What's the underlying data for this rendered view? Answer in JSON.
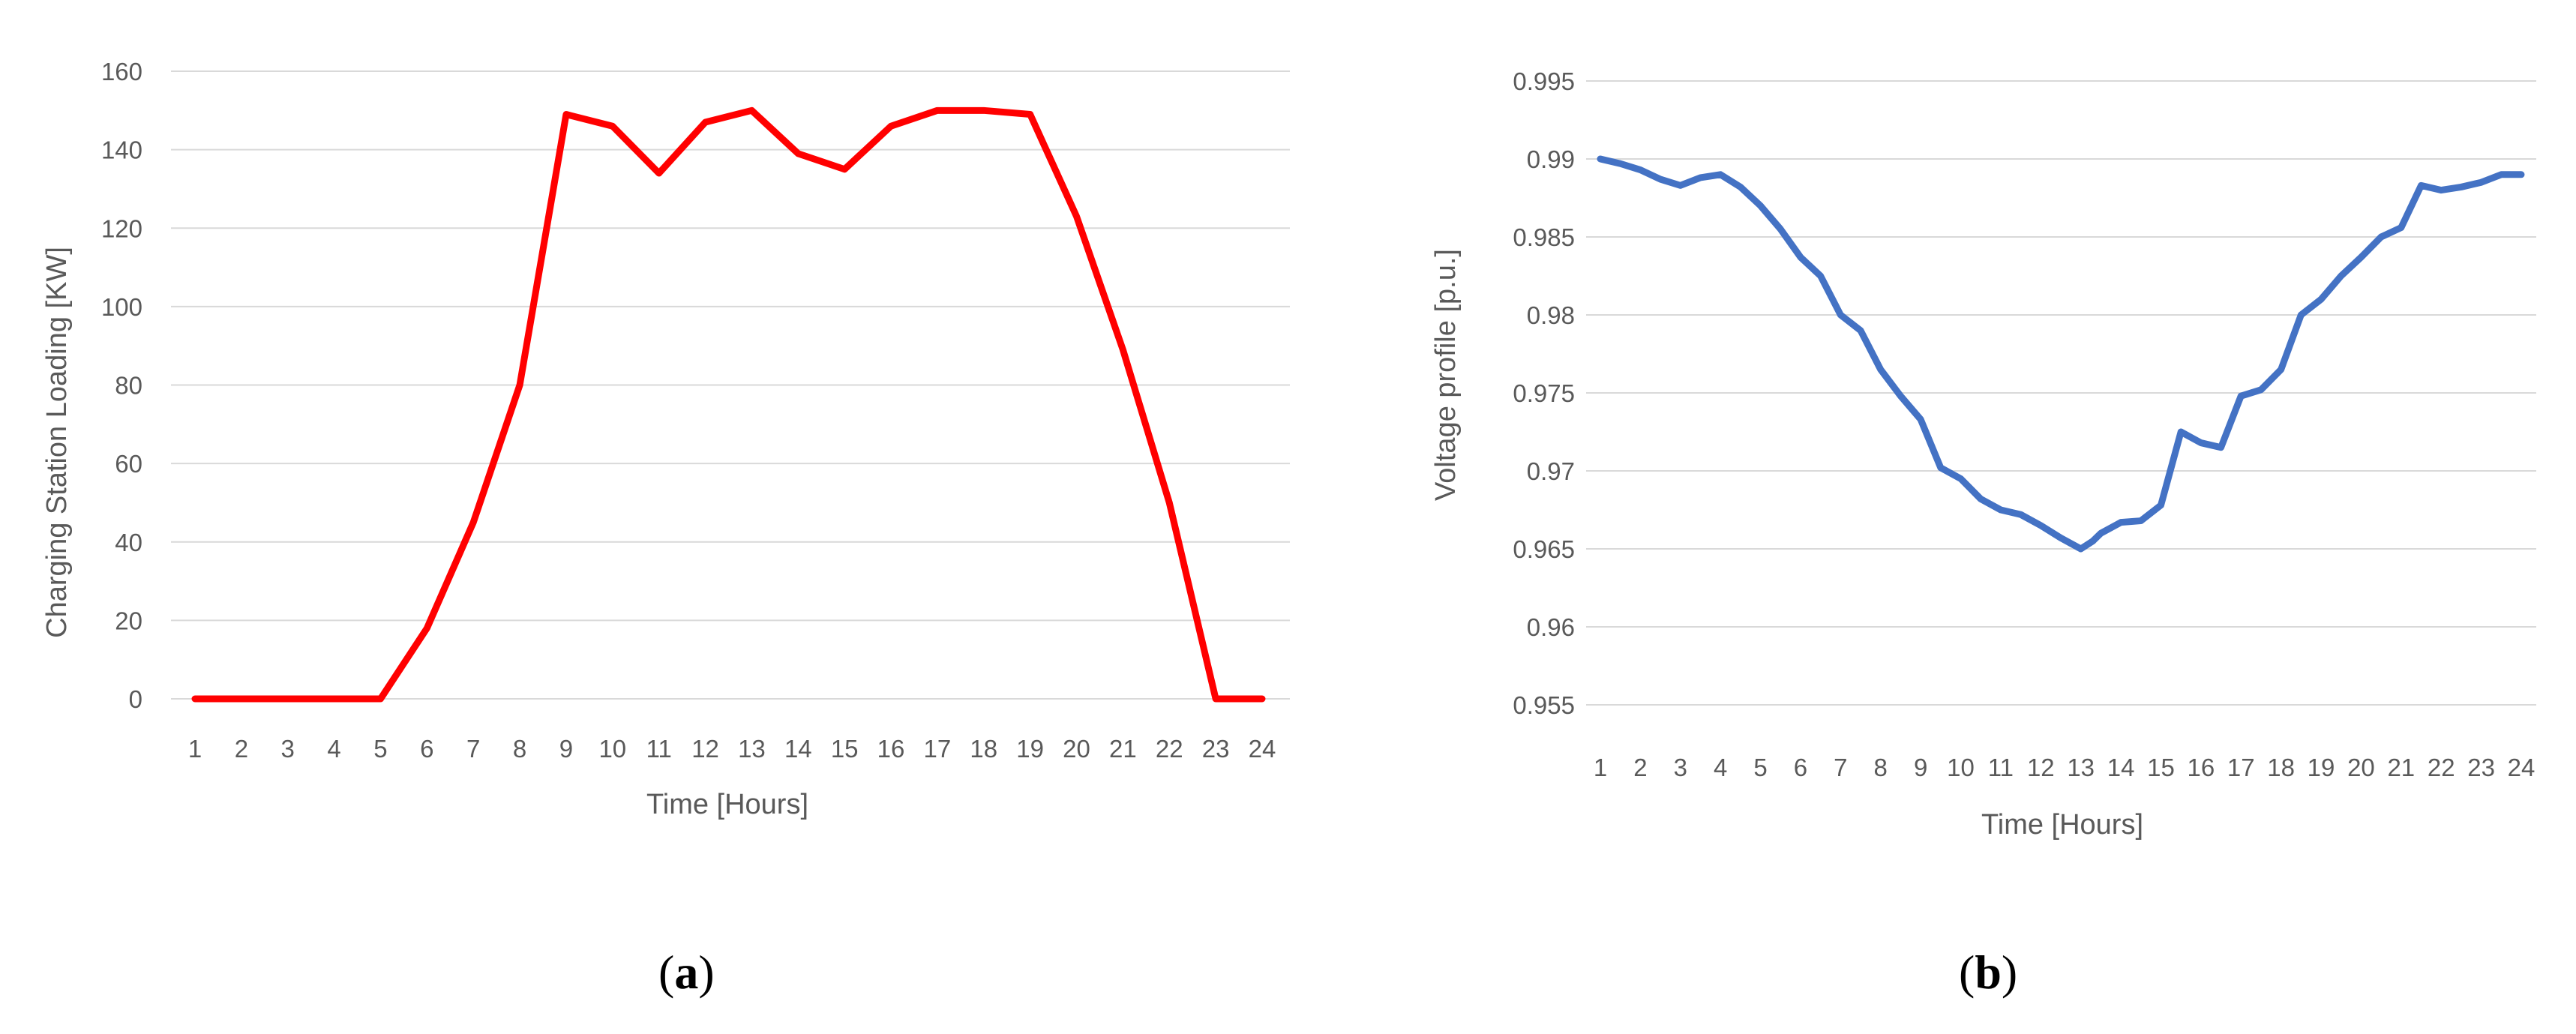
{
  "chart_data": [
    {
      "type": "line",
      "panel": "(a)",
      "panel_letter": "a",
      "xlabel": "Time [Hours]",
      "ylabel": "Charging Station Loading [KW]",
      "ylim": [
        0,
        160
      ],
      "yticks": [
        "0",
        "20",
        "40",
        "60",
        "80",
        "100",
        "120",
        "140",
        "160"
      ],
      "x": [
        1,
        2,
        3,
        4,
        5,
        6,
        7,
        8,
        9,
        10,
        11,
        12,
        13,
        14,
        15,
        16,
        17,
        18,
        19,
        20,
        21,
        22,
        23,
        24
      ],
      "xtick_labels": [
        "1",
        "2",
        "3",
        "4",
        "5",
        "6",
        "7",
        "8",
        "9",
        "10",
        "11",
        "12",
        "13",
        "14",
        "15",
        "16",
        "17",
        "18",
        "19",
        "20",
        "21",
        "22",
        "23",
        "24"
      ],
      "series": [
        {
          "color": "#ff0000",
          "values": [
            0,
            0,
            0,
            0,
            0,
            18,
            45,
            80,
            149,
            146,
            134,
            147,
            150,
            139,
            135,
            146,
            150,
            150,
            149,
            123,
            89,
            50,
            0,
            0
          ]
        }
      ],
      "grid": "horizontal",
      "legend": "none"
    },
    {
      "type": "line",
      "panel": "(b)",
      "panel_letter": "b",
      "xlabel": "Time [Hours]",
      "ylabel": "Voltage profile [p.u.]",
      "ylim": [
        0.955,
        0.995
      ],
      "yticks": [
        "0.955",
        "0.96",
        "0.965",
        "0.97",
        "0.975",
        "0.98",
        "0.985",
        "0.99",
        "0.995"
      ],
      "xtick_labels": [
        "1",
        "2",
        "3",
        "4",
        "5",
        "6",
        "7",
        "8",
        "9",
        "10",
        "11",
        "12",
        "13",
        "14",
        "15",
        "16",
        "17",
        "18",
        "19",
        "20",
        "21",
        "22",
        "23",
        "24"
      ],
      "series": [
        {
          "color": "#4472c4",
          "x": [
            1,
            1.5,
            2,
            2.5,
            3,
            3.5,
            4,
            4.5,
            5,
            5.5,
            6,
            6.5,
            7,
            7.5,
            8,
            8.5,
            9,
            9.5,
            10,
            10.5,
            11,
            11.5,
            12,
            12.5,
            13,
            13.3,
            13.5,
            14,
            14.5,
            15,
            15.5,
            16,
            16.5,
            17,
            17.5,
            18,
            18.5,
            19,
            19.5,
            20,
            20.5,
            21,
            21.5,
            22,
            22.5,
            23,
            23.5,
            24
          ],
          "values": [
            0.99,
            0.9897,
            0.9893,
            0.9887,
            0.9883,
            0.9888,
            0.989,
            0.9882,
            0.987,
            0.9855,
            0.9837,
            0.9825,
            0.98,
            0.979,
            0.9765,
            0.9748,
            0.9733,
            0.9702,
            0.9695,
            0.9682,
            0.9675,
            0.9672,
            0.9665,
            0.9657,
            0.965,
            0.9655,
            0.966,
            0.9667,
            0.9668,
            0.9678,
            0.9725,
            0.9718,
            0.9715,
            0.9748,
            0.9752,
            0.9765,
            0.98,
            0.981,
            0.9825,
            0.9837,
            0.985,
            0.9856,
            0.9883,
            0.988,
            0.9882,
            0.9885,
            0.989,
            0.989
          ]
        }
      ],
      "grid": "horizontal",
      "legend": "none"
    }
  ]
}
